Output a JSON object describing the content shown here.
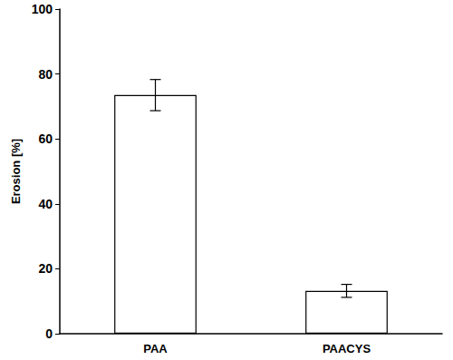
{
  "chart_data": {
    "type": "bar",
    "y_label": "Erosion [%]",
    "categories": [
      "PAA",
      "PAACYS"
    ],
    "values": [
      73.5,
      13.2
    ],
    "errors": [
      4.8,
      2.0
    ],
    "color": "#ffffff",
    "ylim": [
      0,
      100
    ],
    "yticks": [
      0,
      20,
      40,
      60,
      80,
      100
    ],
    "grid": false
  }
}
